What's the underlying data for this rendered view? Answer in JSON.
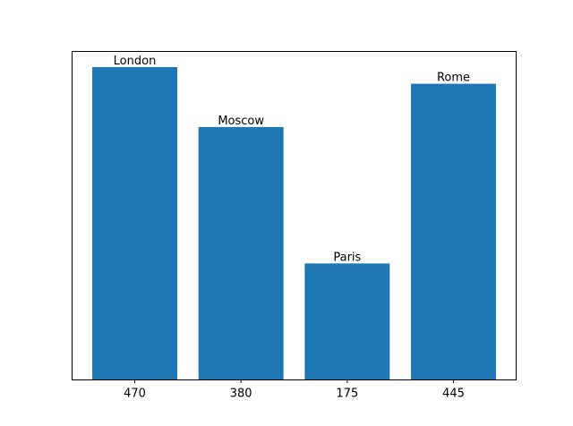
{
  "chart_data": {
    "type": "bar",
    "categories": [
      "470",
      "380",
      "175",
      "445"
    ],
    "values": [
      470,
      380,
      175,
      445
    ],
    "bar_labels": [
      "London",
      "Moscow",
      "Paris",
      "Rome"
    ],
    "title": "",
    "xlabel": "",
    "ylabel": "",
    "ylim": [
      0,
      493.5
    ],
    "y_axis_visible": false,
    "grid": false,
    "bar_color": "#1f77b4",
    "axis_color": "#000000"
  }
}
